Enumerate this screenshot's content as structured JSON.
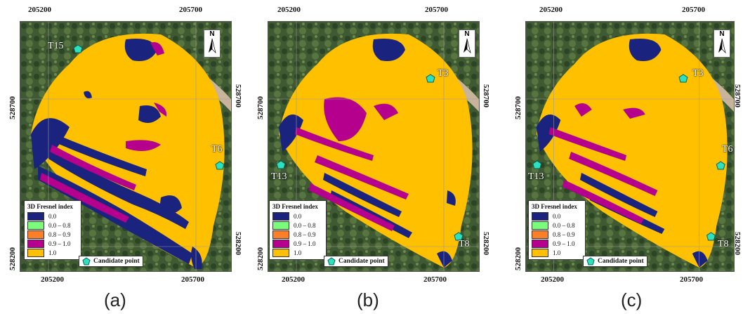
{
  "panels": [
    {
      "label": "(a)",
      "coords": {
        "top_left": "205200",
        "top_right": "205700",
        "bottom_left": "205200",
        "bottom_right": "205700",
        "left_upper": "528700",
        "left_lower": "528200",
        "right_upper": "528700",
        "right_lower": "528200"
      },
      "candidates": [
        "T15",
        "T6"
      ]
    },
    {
      "label": "(b)",
      "coords": {
        "top_left": "205200",
        "top_right": "205700",
        "bottom_left": "205200",
        "bottom_right": "205700",
        "left_upper": "528700",
        "left_lower": "528200",
        "right_upper": "528700",
        "right_lower": "528200"
      },
      "candidates": [
        "T3",
        "T13",
        "T8"
      ]
    },
    {
      "label": "(c)",
      "coords": {
        "top_left": "205200",
        "top_right": "205700",
        "bottom_left": "205200",
        "bottom_right": "205700",
        "left_upper": "528700",
        "left_lower": "528200",
        "right_upper": "528700",
        "right_lower": "528200"
      },
      "candidates": [
        "T3",
        "T13",
        "T6",
        "T8"
      ]
    }
  ],
  "legend": {
    "title": "3D Fresnel index",
    "entries": [
      {
        "label": "0.0",
        "color": "#1a237e"
      },
      {
        "label": "0.0 – 0.8",
        "color": "#7CFC7C"
      },
      {
        "label": "0.8 – 0.9",
        "color": "#ff7f27"
      },
      {
        "label": "0.9 – 1.0",
        "color": "#b4008c"
      },
      {
        "label": "1.0",
        "color": "#ffc000"
      }
    ]
  },
  "candidate_legend": "Candidate point",
  "north_label": "N",
  "colors": {
    "imagery_dark": "#2f4a2a",
    "imagery_mid": "#4f6b3a",
    "marker": "#2de0c0"
  }
}
